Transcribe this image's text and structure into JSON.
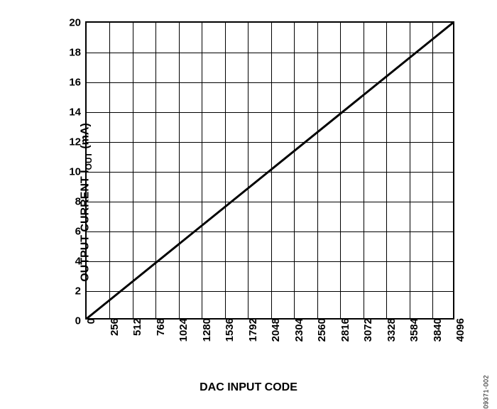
{
  "chart": {
    "type": "line",
    "y_label_prefix": "OUTPUT CURRENT I",
    "y_label_sub": "OUT",
    "y_label_suffix": " (mA)",
    "x_label": "DAC INPUT CODE",
    "figure_id": "09371-002",
    "xlim": [
      0,
      4096
    ],
    "ylim": [
      0,
      20
    ],
    "x_ticks": [
      0,
      256,
      512,
      768,
      1024,
      1280,
      1536,
      1792,
      2048,
      2304,
      2560,
      2816,
      3072,
      3328,
      3584,
      3840,
      4096
    ],
    "y_ticks": [
      0,
      2,
      4,
      6,
      8,
      10,
      12,
      14,
      16,
      18,
      20
    ],
    "line_points": [
      [
        0,
        0
      ],
      [
        4096,
        20
      ]
    ],
    "line_color": "#000000",
    "line_width": 3,
    "grid_color": "#000000",
    "grid_width": 1,
    "background_color": "#ffffff",
    "border_color": "#000000",
    "border_width": 2,
    "tick_font_size": 15,
    "label_font_size": 16,
    "label_font_weight": "bold"
  }
}
